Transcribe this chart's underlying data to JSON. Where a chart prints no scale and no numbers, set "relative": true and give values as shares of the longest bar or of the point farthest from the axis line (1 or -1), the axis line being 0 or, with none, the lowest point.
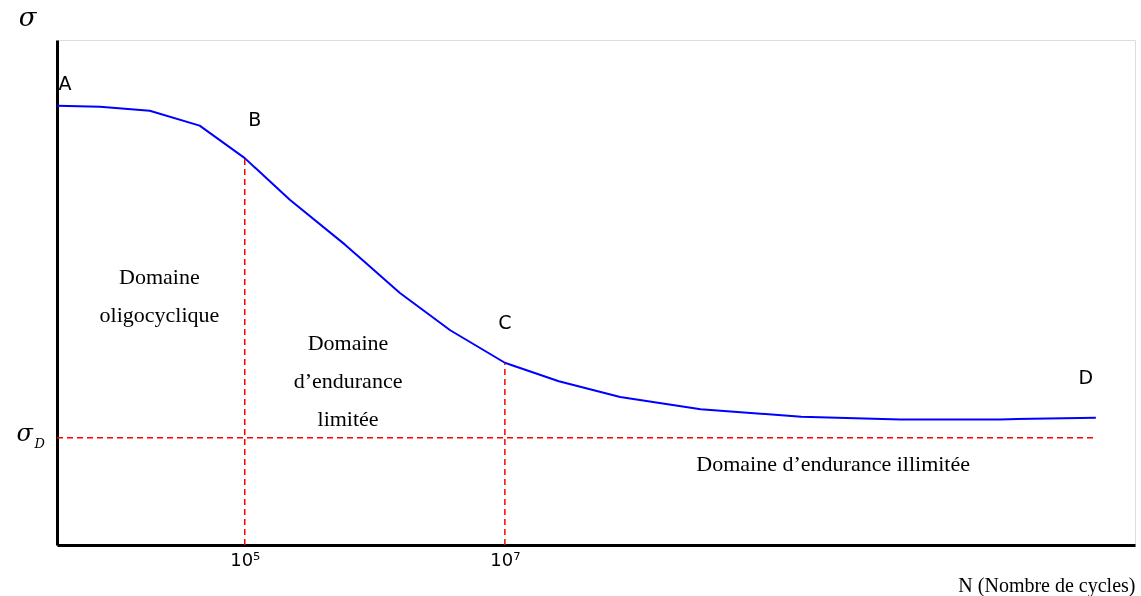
{
  "chart_data": {
    "type": "line",
    "relative": true,
    "xlabel": "N (Nombre de cycles)",
    "ylabel": "σ",
    "log": "x",
    "x": [
      3600,
      7700,
      18600,
      45000,
      100000,
      222000,
      590000,
      1560000,
      3800000,
      10000000,
      26000000,
      77000000,
      320000000,
      1900000000,
      11000000000,
      64000000000,
      350000000000
    ],
    "series": [
      {
        "color": "#0000ff",
        "values": [
          1.0,
          0.998,
          0.989,
          0.955,
          0.881,
          0.786,
          0.684,
          0.574,
          0.489,
          0.415,
          0.373,
          0.337,
          0.309,
          0.292,
          0.286,
          0.286,
          0.29
        ]
      }
    ],
    "xlim": [
      3600,
      700000000000
    ],
    "xticks": [
      {
        "value": 100000,
        "label": "10⁵"
      },
      {
        "value": 10000000,
        "label": "10⁷"
      }
    ],
    "tick_labels": "x",
    "grid": false,
    "marker": "none",
    "line_style": "solid",
    "ref_lines": [
      {
        "axis": "x",
        "value": 100000,
        "label": null,
        "color": "#ff0000",
        "line_style": "dashed"
      },
      {
        "axis": "x",
        "value": 10000000,
        "label": null,
        "color": "#ff0000",
        "line_style": "dashed"
      },
      {
        "axis": "y",
        "value": 0.244,
        "label": "σ$_{D}$",
        "color": "#ff0000",
        "line_style": "dashed"
      }
    ],
    "annotations": [
      {
        "text": "A",
        "x": 3600,
        "y": 1.0
      },
      {
        "text": "B",
        "x": 100000,
        "y": 0.881
      },
      {
        "text": "C",
        "x": 10000000,
        "y": 0.415
      },
      {
        "text": "D",
        "x": 350000000000,
        "y": 0.29
      },
      "Domaine\noligocyclique",
      "Domaine\nd’endurance\nlimitée",
      "Domaine d’endurance illimitée"
    ]
  }
}
